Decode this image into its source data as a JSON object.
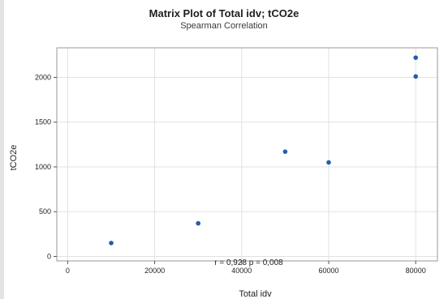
{
  "chart_data": {
    "type": "scatter",
    "title": "Matrix Plot of Total idv; tCO2e",
    "subtitle": "Spearman Correlation",
    "xlabel": "Total idv",
    "ylabel": "tCO2e",
    "xlim": [
      -2500,
      85000
    ],
    "ylim": [
      -50,
      2330
    ],
    "xticks": [
      0,
      20000,
      40000,
      60000,
      80000
    ],
    "xtick_labels": [
      "0",
      "20000",
      "40000",
      "60000",
      "80000"
    ],
    "yticks": [
      0,
      500,
      1000,
      1500,
      2000
    ],
    "ytick_labels": [
      "0",
      "500",
      "1000",
      "1500",
      "2000"
    ],
    "grid": true,
    "series": [
      {
        "x": [
          10000,
          30000,
          50000,
          60000,
          80000,
          80000
        ],
        "y": [
          150,
          370,
          1170,
          1050,
          2010,
          2220
        ]
      }
    ],
    "annotation": "r = 0,928  p = 0,008",
    "colors": {
      "marker": "#1f5fa8",
      "grid": "#e2e2e2",
      "axis": "#9a9a9a"
    }
  }
}
